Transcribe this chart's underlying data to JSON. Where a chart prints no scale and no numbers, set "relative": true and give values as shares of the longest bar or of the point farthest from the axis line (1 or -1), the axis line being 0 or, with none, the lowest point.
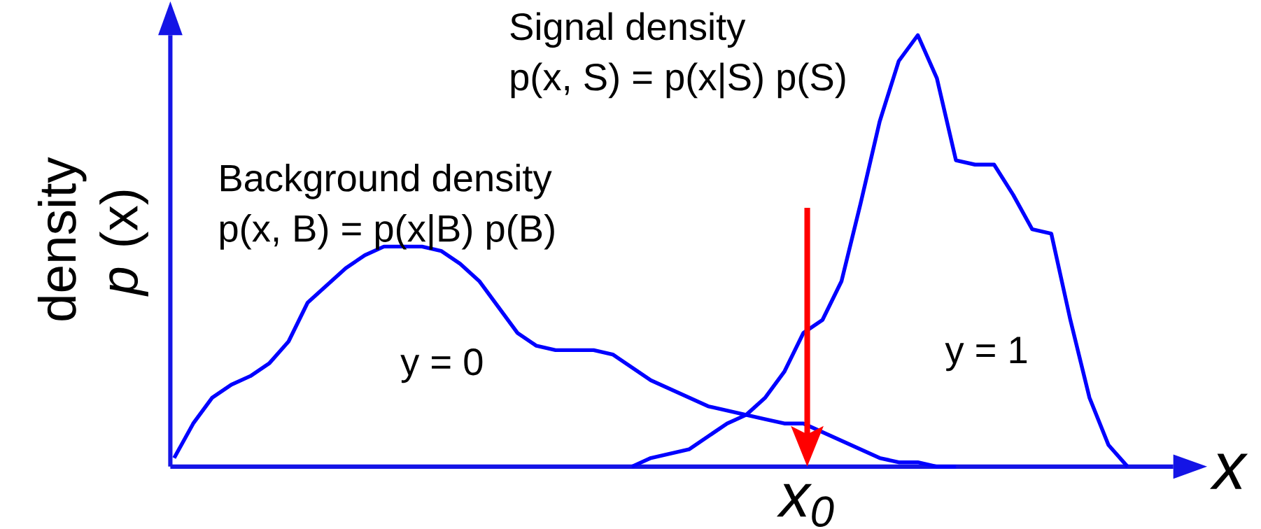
{
  "chart_data": {
    "type": "line",
    "relative": true,
    "xlabel": "x",
    "ylabel": "density *p* (x)",
    "categories": [
      null,
      null,
      null,
      null,
      null,
      null,
      null,
      null,
      null,
      null,
      null,
      null,
      null,
      null,
      null,
      null,
      null,
      null,
      null,
      null,
      null,
      null,
      null,
      null,
      null,
      null,
      null,
      null,
      null,
      null,
      null,
      null,
      null,
      null,
      null,
      null,
      null,
      null,
      null,
      null,
      null,
      null,
      null,
      null,
      null,
      null,
      null,
      null,
      null,
      null,
      null
    ],
    "series": [
      {
        "color": "#0000ff",
        "values": [
          0.02,
          0.1,
          0.16,
          0.19,
          0.21,
          0.24,
          0.29,
          0.38,
          0.42,
          0.46,
          0.49,
          0.51,
          0.51,
          0.51,
          0.5,
          0.47,
          0.43,
          0.37,
          0.31,
          0.28,
          0.27,
          0.27,
          0.27,
          0.26,
          0.23,
          0.2,
          0.18,
          0.16,
          0.14,
          0.13,
          0.12,
          0.11,
          0.1,
          0.1,
          0.08,
          0.06,
          0.04,
          0.02,
          0.01,
          0.01,
          0,
          0,
          null,
          null,
          null,
          null,
          null,
          null,
          null,
          null,
          null
        ]
      },
      {
        "color": "#0000ff",
        "values": [
          null,
          null,
          null,
          null,
          null,
          null,
          null,
          null,
          null,
          null,
          null,
          null,
          null,
          null,
          null,
          null,
          null,
          null,
          null,
          null,
          null,
          null,
          null,
          null,
          0,
          0.02,
          0.03,
          0.04,
          0.07,
          0.1,
          0.12,
          0.16,
          0.22,
          0.31,
          0.34,
          0.43,
          0.61,
          0.8,
          0.94,
          1.0,
          0.9,
          0.71,
          0.7,
          0.7,
          0.63,
          0.55,
          0.54,
          0.34,
          0.16,
          0.05,
          0
        ]
      }
    ],
    "annotations": [
      "Signal density",
      "p(x, S) = p(x|S) p(S)",
      "Background density",
      "p(x, B) = p(x|B) p(B)",
      "y = 0",
      "y = 1",
      "x$_{0}$"
    ],
    "marker": "none",
    "line_style": "solid"
  }
}
